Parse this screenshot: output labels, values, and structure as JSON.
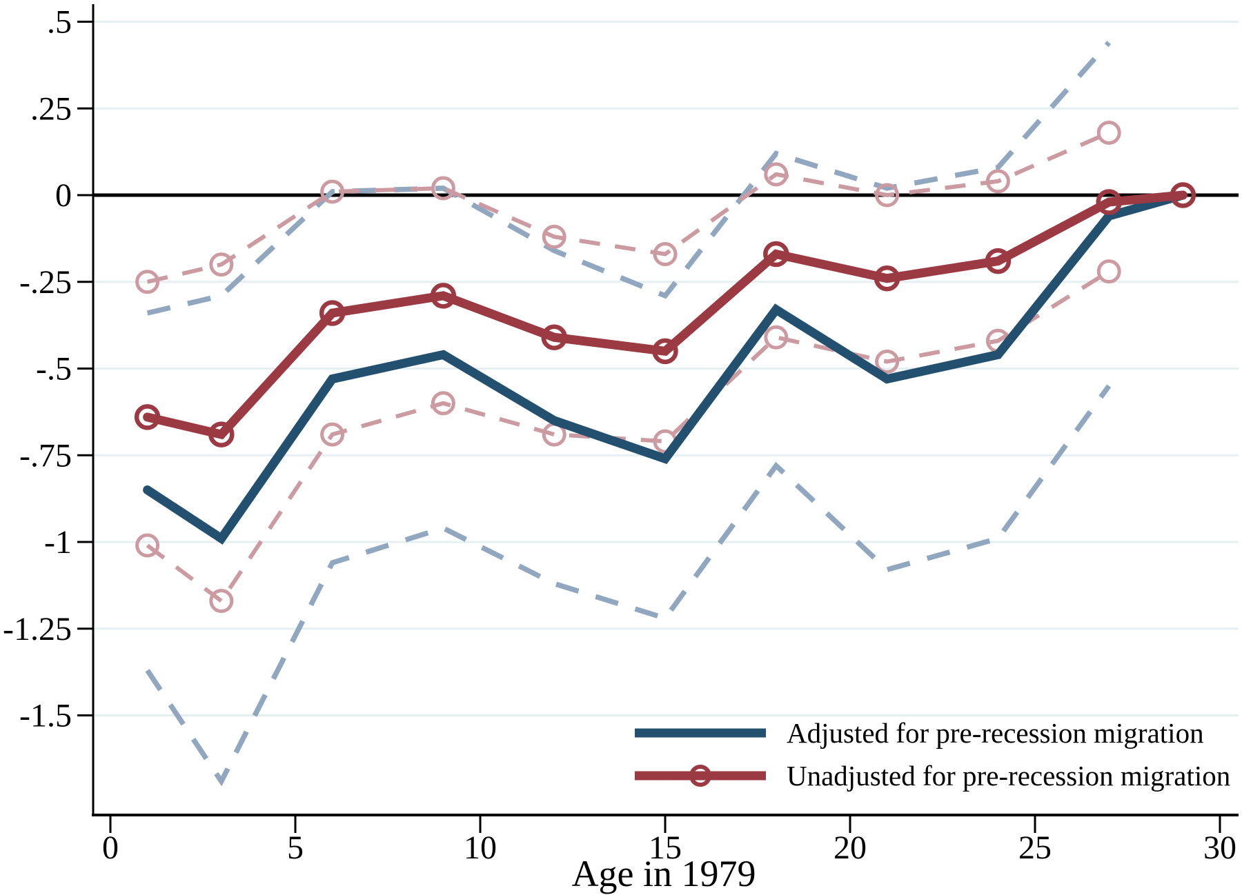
{
  "figure_title": "",
  "colors": {
    "adjusted_line": "#24506F",
    "unadjusted_line": "#9C3A43",
    "adjusted_ci": "#90A7BF",
    "unadjusted_ci": "#CC9AA1",
    "gridline": "#E6EFF2",
    "axis": "#000000",
    "zero_line": "#000000",
    "background": "#FFFFFF"
  },
  "legend": {
    "items": [
      {
        "label": "Adjusted for pre-recession migration",
        "series": "adjusted",
        "marker": "none"
      },
      {
        "label": "Unadjusted for pre-recession migration",
        "series": "unadjusted",
        "marker": "circle"
      }
    ]
  },
  "chart_data": {
    "type": "line",
    "title": "",
    "xlabel": "Age in 1979",
    "ylabel": "",
    "xlim": [
      -0.5,
      30.5
    ],
    "ylim": [
      -1.79,
      0.55
    ],
    "grid": "horizontal",
    "zero_reference_line": 0,
    "x_ticks": [
      0,
      5,
      10,
      15,
      20,
      25,
      30
    ],
    "y_ticks": [
      {
        "value": 0.5,
        "label": ".5"
      },
      {
        "value": 0.25,
        "label": ".25"
      },
      {
        "value": 0,
        "label": "0"
      },
      {
        "value": -0.25,
        "label": "-.25"
      },
      {
        "value": -0.5,
        "label": "-.5"
      },
      {
        "value": -0.75,
        "label": "-.75"
      },
      {
        "value": -1,
        "label": "-1"
      },
      {
        "value": -1.25,
        "label": "-1.25"
      },
      {
        "value": -1.5,
        "label": "-1.5"
      }
    ],
    "series": [
      {
        "name": "adjusted_ci_upper",
        "role": "ci",
        "style": "dashed",
        "marker": "none",
        "color_key": "adjusted_ci",
        "x": [
          1,
          3,
          6,
          9,
          12,
          15,
          18,
          21,
          24,
          27
        ],
        "values": [
          -0.34,
          -0.29,
          0.01,
          0.02,
          -0.16,
          -0.29,
          0.12,
          0.02,
          0.08,
          0.44
        ]
      },
      {
        "name": "adjusted_ci_lower",
        "role": "ci",
        "style": "dashed",
        "marker": "none",
        "color_key": "adjusted_ci",
        "x": [
          1,
          3,
          6,
          9,
          12,
          15,
          18,
          21,
          24,
          27
        ],
        "values": [
          -1.37,
          -1.69,
          -1.06,
          -0.96,
          -1.12,
          -1.22,
          -0.78,
          -1.08,
          -0.99,
          -0.55
        ]
      },
      {
        "name": "unadjusted_ci_upper",
        "role": "ci",
        "style": "dashed",
        "marker": "circle",
        "color_key": "unadjusted_ci",
        "x": [
          1,
          3,
          6,
          9,
          12,
          15,
          18,
          21,
          24,
          27
        ],
        "values": [
          -0.25,
          -0.2,
          0.01,
          0.02,
          -0.12,
          -0.17,
          0.06,
          0.0,
          0.04,
          0.18
        ]
      },
      {
        "name": "unadjusted_ci_lower",
        "role": "ci",
        "style": "dashed",
        "marker": "circle",
        "color_key": "unadjusted_ci",
        "x": [
          1,
          3,
          6,
          9,
          12,
          15,
          18,
          21,
          24,
          27
        ],
        "values": [
          -1.01,
          -1.17,
          -0.69,
          -0.6,
          -0.69,
          -0.71,
          -0.41,
          -0.48,
          -0.42,
          -0.22
        ]
      },
      {
        "name": "adjusted",
        "role": "main",
        "style": "solid",
        "marker": "none",
        "color_key": "adjusted_line",
        "x": [
          1,
          3,
          6,
          9,
          12,
          15,
          18,
          21,
          24,
          27,
          29
        ],
        "values": [
          -0.85,
          -0.99,
          -0.53,
          -0.46,
          -0.65,
          -0.76,
          -0.33,
          -0.53,
          -0.46,
          -0.06,
          0.0
        ]
      },
      {
        "name": "unadjusted",
        "role": "main",
        "style": "solid",
        "marker": "circle",
        "color_key": "unadjusted_line",
        "x": [
          1,
          3,
          6,
          9,
          12,
          15,
          18,
          21,
          24,
          27,
          29
        ],
        "values": [
          -0.64,
          -0.69,
          -0.34,
          -0.29,
          -0.41,
          -0.45,
          -0.17,
          -0.24,
          -0.19,
          -0.02,
          0.0
        ]
      }
    ]
  }
}
